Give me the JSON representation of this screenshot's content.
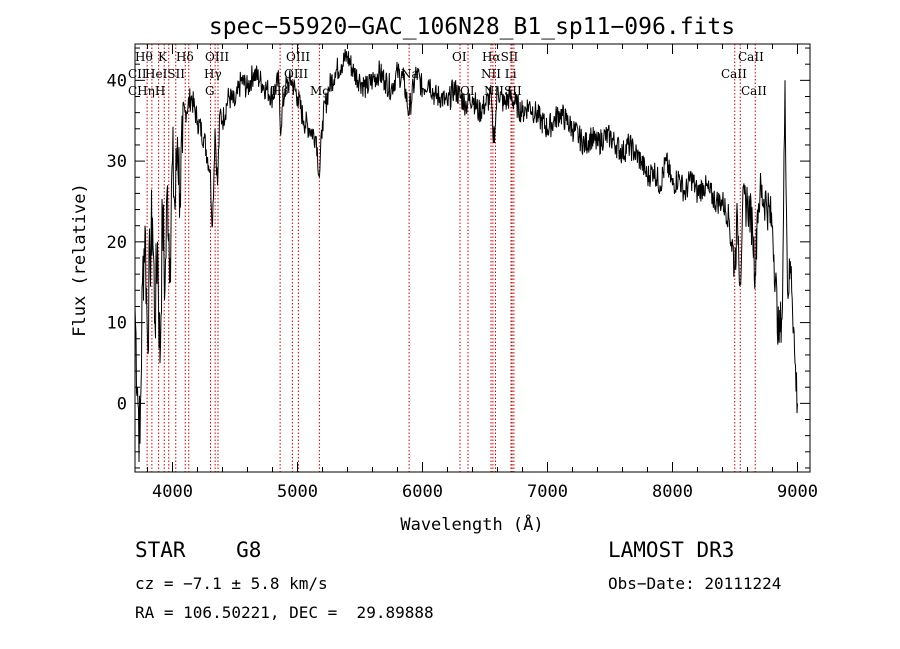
{
  "chart_data": {
    "type": "line",
    "title": "spec−55920−GAC_106N28_B1_sp11−096.fits",
    "xlabel": "Wavelength (Å)",
    "ylabel": "Flux (relative)",
    "xlim": [
      3700,
      9100
    ],
    "ylim": [
      -8.5,
      44.5
    ],
    "xticks": [
      4000,
      5000,
      6000,
      7000,
      8000,
      9000
    ],
    "yticks": [
      0,
      10,
      20,
      30,
      40
    ],
    "grid": false,
    "series": [
      {
        "name": "flux",
        "x": [
          3700,
          3720,
          3740,
          3760,
          3780,
          3800,
          3820,
          3840,
          3860,
          3880,
          3900,
          3920,
          3940,
          3960,
          3980,
          4000,
          4020,
          4040,
          4060,
          4080,
          4100,
          4150,
          4200,
          4250,
          4300,
          4320,
          4340,
          4360,
          4380,
          4400,
          4450,
          4500,
          4550,
          4600,
          4650,
          4700,
          4750,
          4800,
          4850,
          4862,
          4900,
          4950,
          5000,
          5050,
          5100,
          5150,
          5175,
          5200,
          5250,
          5300,
          5350,
          5400,
          5450,
          5500,
          5550,
          5600,
          5650,
          5700,
          5750,
          5800,
          5850,
          5890,
          5950,
          6000,
          6050,
          6100,
          6150,
          6200,
          6250,
          6300,
          6350,
          6400,
          6450,
          6500,
          6550,
          6563,
          6580,
          6600,
          6650,
          6700,
          6750,
          6800,
          6850,
          6900,
          6950,
          7000,
          7050,
          7100,
          7150,
          7200,
          7250,
          7300,
          7350,
          7400,
          7450,
          7500,
          7550,
          7600,
          7650,
          7700,
          7750,
          7800,
          7850,
          7900,
          7950,
          8000,
          8050,
          8100,
          8150,
          8200,
          8250,
          8300,
          8350,
          8400,
          8450,
          8498,
          8520,
          8542,
          8560,
          8600,
          8640,
          8662,
          8680,
          8700,
          8750,
          8800,
          8850,
          8880,
          8900,
          8920,
          8950,
          8980,
          9000
        ],
        "y": [
          12,
          2,
          -5,
          15,
          22,
          8,
          18,
          23,
          10,
          20,
          5,
          24,
          14,
          27,
          18,
          30,
          24,
          33,
          26,
          31,
          36,
          38,
          35,
          33,
          29,
          22,
          34,
          27,
          36,
          35,
          38,
          37,
          40,
          39,
          41,
          40,
          39,
          38,
          40,
          34,
          39,
          40,
          38,
          35,
          34,
          33,
          28,
          35,
          39,
          41,
          42,
          43,
          41,
          40,
          39,
          40,
          41,
          40,
          39,
          41,
          40,
          36,
          41,
          39,
          40,
          38,
          38,
          37,
          39,
          38,
          37,
          38,
          36,
          37,
          38,
          33,
          34,
          39,
          37,
          38,
          37,
          36,
          37,
          36,
          35,
          34,
          35,
          36,
          35,
          34,
          33,
          32,
          33,
          32,
          33,
          33,
          32,
          31,
          32,
          31,
          30,
          28,
          29,
          27,
          30,
          27,
          28,
          26,
          28,
          26,
          27,
          26,
          25,
          25,
          23,
          17,
          23,
          15,
          24,
          25,
          22,
          16,
          24,
          26,
          25,
          22,
          8,
          12,
          40,
          14,
          17,
          5,
          0
        ]
      }
    ],
    "lines": [
      {
        "label": "Hθ",
        "x": 3797
      },
      {
        "label": "CII",
        "x": 3835
      },
      {
        "label": "CH",
        "x": 3889
      },
      {
        "label": "K",
        "x": 3934
      },
      {
        "label": "HeI",
        "x": 3970
      },
      {
        "label": "SII",
        "x": 4026
      },
      {
        "label": "Hδ",
        "x": 4102
      },
      {
        "label": "ηH",
        "x": 4130
      },
      {
        "label": "G",
        "x": 4304
      },
      {
        "label": "Hγ",
        "x": 4341
      },
      {
        "label": "OIII",
        "x": 4364
      },
      {
        "label": "Hβ",
        "x": 4861
      },
      {
        "label": "OIII",
        "x": 4959
      },
      {
        "label": "OIII",
        "x": 5007
      },
      {
        "label": "Mg",
        "x": 5175
      },
      {
        "label": "Na",
        "x": 5893
      },
      {
        "label": "OI",
        "x": 6300
      },
      {
        "label": "OI",
        "x": 6364
      },
      {
        "label": "NII",
        "x": 6548
      },
      {
        "label": "Hα",
        "x": 6563
      },
      {
        "label": "NII",
        "x": 6584
      },
      {
        "label": "Li",
        "x": 6708
      },
      {
        "label": "SII",
        "x": 6717
      },
      {
        "label": "SII",
        "x": 6731
      },
      {
        "label": "CaII",
        "x": 8498
      },
      {
        "label": "CaII",
        "x": 8542
      },
      {
        "label": "CaII",
        "x": 8662
      }
    ]
  },
  "labels": {
    "top": [
      {
        "text": "Hθ"
      },
      {
        "text": "K"
      },
      {
        "text": "Hδ"
      },
      {
        "text": "OIII"
      },
      {
        "text": "OIII"
      },
      {
        "text": "OI"
      },
      {
        "text": "HαSII"
      },
      {
        "text": "CaII"
      }
    ],
    "mid": [
      {
        "text": "CII"
      },
      {
        "text": "HeISII"
      },
      {
        "text": "Hγ"
      },
      {
        "text": "OIII"
      },
      {
        "text": "Na"
      },
      {
        "text": "NII Li"
      },
      {
        "text": "CaII"
      }
    ],
    "low": [
      {
        "text": "CHηH"
      },
      {
        "text": "G"
      },
      {
        "text": "Hβ"
      },
      {
        "text": "Mg"
      },
      {
        "text": "OI"
      },
      {
        "text": "NIISII"
      },
      {
        "text": "CaII"
      }
    ]
  },
  "info": {
    "object": "STAR    G8",
    "cz": "cz = −7.1 ± 5.8 km/s",
    "radec": "RA = 106.50221, DEC =  29.89888",
    "survey": "LAMOST DR3",
    "obsdate": "Obs−Date: 20111224"
  },
  "colors": {
    "spectrum": "#000000",
    "line_markers": "#cc0000",
    "axes": "#000000"
  }
}
